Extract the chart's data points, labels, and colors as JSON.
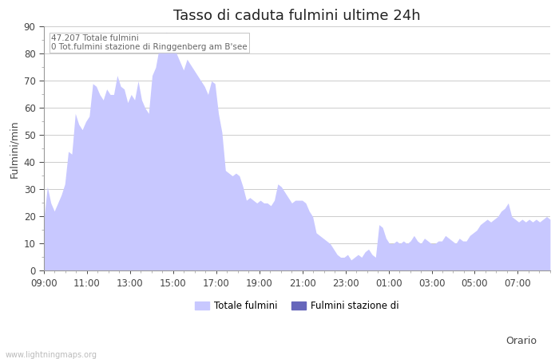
{
  "title": "Tasso di caduta fulmini ultime 24h",
  "xlabel": "Orario",
  "ylabel": "Fulmini/min",
  "ylim": [
    0,
    90
  ],
  "yticks": [
    0,
    10,
    20,
    30,
    40,
    50,
    60,
    70,
    80,
    90
  ],
  "x_labels": [
    "09:00",
    "11:00",
    "13:00",
    "15:00",
    "17:00",
    "19:00",
    "21:00",
    "23:00",
    "01:00",
    "03:00",
    "05:00",
    "07:00"
  ],
  "annotation_line1": "47.207 Totale fulmini",
  "annotation_line2": "0 Tot.fulmini stazione di Ringgenberg am B'see",
  "legend_label1": "Totale fulmini",
  "legend_label2": "Fulmini stazione di",
  "fill_color": "#c8c8ff",
  "fill_color2": "#6666bb",
  "watermark": "www.lightningmaps.org",
  "title_fontsize": 13,
  "axis_fontsize": 9,
  "tick_fontsize": 8.5,
  "y_values": [
    19,
    31,
    25,
    22,
    25,
    28,
    32,
    44,
    43,
    58,
    54,
    52,
    55,
    57,
    69,
    68,
    65,
    63,
    67,
    65,
    65,
    72,
    68,
    67,
    62,
    65,
    63,
    70,
    63,
    60,
    58,
    72,
    75,
    82,
    86,
    88,
    87,
    84,
    80,
    77,
    74,
    78,
    76,
    74,
    72,
    70,
    68,
    65,
    70,
    69,
    58,
    51,
    37,
    36,
    35,
    36,
    35,
    31,
    26,
    27,
    26,
    25,
    26,
    25,
    25,
    24,
    26,
    32,
    31,
    29,
    27,
    25,
    26,
    26,
    26,
    25,
    22,
    20,
    14,
    13,
    12,
    11,
    10,
    8,
    6,
    5,
    5,
    6,
    4,
    5,
    6,
    5,
    7,
    8,
    6,
    5,
    17,
    16,
    12,
    10,
    10,
    11,
    10,
    11,
    10,
    11,
    13,
    11,
    10,
    12,
    11,
    10,
    10,
    11,
    11,
    13,
    12,
    11,
    10,
    12,
    11,
    11,
    13,
    14,
    15,
    17,
    18,
    19,
    18,
    19,
    20,
    22,
    23,
    25,
    20,
    19,
    18,
    19,
    18,
    19,
    18,
    19,
    18,
    19,
    20,
    19
  ]
}
